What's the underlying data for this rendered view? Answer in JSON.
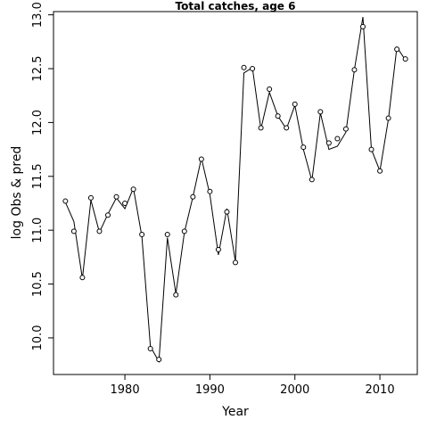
{
  "chart_data": {
    "type": "line",
    "title": "Total catches, age 6",
    "xlabel": "Year",
    "ylabel": "log Obs & pred",
    "xlim": [
      1971.6,
      2014.4
    ],
    "ylim": [
      9.66,
      13.03
    ],
    "x_ticks": [
      1980,
      1990,
      2000,
      2010
    ],
    "y_ticks": [
      10.0,
      10.5,
      11.0,
      11.5,
      12.0,
      12.5,
      13.0
    ],
    "y_tick_labels": [
      "10.0",
      "10.5",
      "11.0",
      "11.5",
      "12.0",
      "12.5",
      "13.0"
    ],
    "grid": false,
    "series": [
      {
        "role": "observed",
        "style": "points",
        "x": [
          1973,
          1974,
          1975,
          1976,
          1977,
          1978,
          1979,
          1980,
          1981,
          1982,
          1983,
          1984,
          1985,
          1986,
          1987,
          1988,
          1989,
          1990,
          1991,
          1992,
          1993,
          1994,
          1995,
          1996,
          1997,
          1998,
          1999,
          2000,
          2001,
          2002,
          2003,
          2004,
          2005,
          2006,
          2007,
          2008,
          2009,
          2010,
          2011,
          2012,
          2013
        ],
        "values": [
          11.27,
          10.99,
          10.56,
          11.3,
          10.99,
          11.14,
          11.31,
          11.25,
          11.38,
          10.96,
          9.9,
          9.8,
          10.96,
          10.4,
          10.99,
          11.31,
          11.66,
          11.36,
          10.82,
          11.17,
          10.7,
          12.51,
          12.5,
          11.95,
          12.31,
          12.06,
          11.95,
          12.17,
          11.77,
          11.47,
          12.1,
          11.81,
          11.85,
          11.94,
          12.49,
          12.89,
          11.75,
          11.55,
          12.04,
          12.68,
          12.59
        ]
      },
      {
        "role": "predicted",
        "style": "line",
        "x": [
          1973,
          1974,
          1975,
          1976,
          1977,
          1978,
          1979,
          1980,
          1981,
          1982,
          1983,
          1984,
          1985,
          1986,
          1987,
          1988,
          1989,
          1990,
          1991,
          1992,
          1993,
          1994,
          1995,
          1996,
          1997,
          1998,
          1999,
          2000,
          2001,
          2002,
          2003,
          2004,
          2005,
          2006,
          2007,
          2008,
          2009,
          2010,
          2011,
          2012,
          2013
        ],
        "values": [
          11.26,
          11.08,
          10.55,
          11.28,
          10.98,
          11.15,
          11.3,
          11.2,
          11.39,
          10.94,
          9.92,
          9.78,
          10.93,
          10.41,
          10.98,
          11.31,
          11.67,
          11.33,
          10.77,
          11.2,
          10.71,
          12.46,
          12.51,
          11.94,
          12.28,
          12.06,
          11.94,
          12.16,
          11.75,
          11.46,
          12.09,
          11.75,
          11.78,
          11.91,
          12.49,
          12.98,
          11.75,
          11.55,
          12.03,
          12.7,
          12.58
        ]
      }
    ]
  }
}
